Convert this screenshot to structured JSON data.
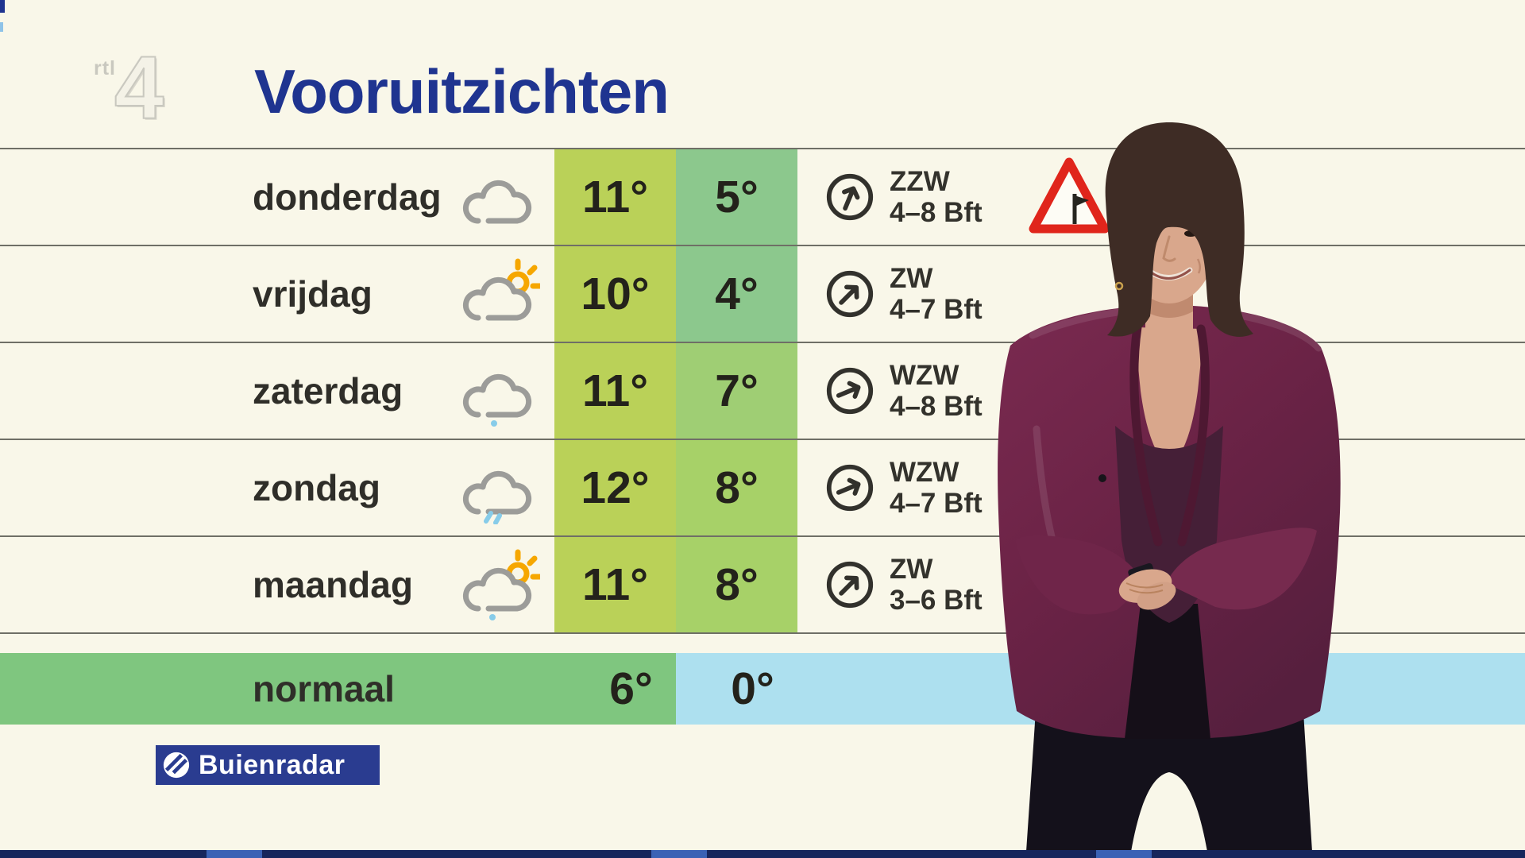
{
  "branding": {
    "channel_small": "rtl",
    "channel_number": "4",
    "title": "Vooruitzichten",
    "buienradar": "Buienradar"
  },
  "colors": {
    "background": "#F9F7E9",
    "title_blue": "#1F3490",
    "table_line": "#6F6F66",
    "max_column": "#BAD158",
    "min_cool": "#8CC88D",
    "min_mild": "#9FCE74",
    "min_warm": "#A7D168",
    "normal_green": "#7FC67F",
    "normal_blue": "#ADE0EF",
    "buienradar_navy": "#2A3C90",
    "warning_red": "#E0251B",
    "sun_orange": "#F6A700",
    "rain_blue": "#87CCE9",
    "cloud_gray": "#9C9C99"
  },
  "forecast": {
    "rows": [
      {
        "day": "donderdag",
        "icon": "cloud",
        "max": "11°",
        "min": "5°",
        "max_color": "#BAD158",
        "min_color": "#8CC88D",
        "wind_dir": "ZZW",
        "wind_force": "4–8 Bft",
        "wind_deg": 22.5,
        "warning": true,
        "warning_icon": "storm-warning-triangle"
      },
      {
        "day": "vrijdag",
        "icon": "cloud-sun",
        "max": "10°",
        "min": "4°",
        "max_color": "#BAD158",
        "min_color": "#8CC88D",
        "wind_dir": "ZW",
        "wind_force": "4–7 Bft",
        "wind_deg": 45,
        "warning": false
      },
      {
        "day": "zaterdag",
        "icon": "cloud-drizzle",
        "max": "11°",
        "min": "7°",
        "max_color": "#BAD158",
        "min_color": "#9FCE74",
        "wind_dir": "WZW",
        "wind_force": "4–8 Bft",
        "wind_deg": 67.5,
        "warning": false
      },
      {
        "day": "zondag",
        "icon": "cloud-rain",
        "max": "12°",
        "min": "8°",
        "max_color": "#BAD158",
        "min_color": "#A7D168",
        "wind_dir": "WZW",
        "wind_force": "4–7 Bft",
        "wind_deg": 67.5,
        "warning": false
      },
      {
        "day": "maandag",
        "icon": "cloud-sun-drizzle",
        "max": "11°",
        "min": "8°",
        "max_color": "#BAD158",
        "min_color": "#A7D168",
        "wind_dir": "ZW",
        "wind_force": "3–6 Bft",
        "wind_deg": 45,
        "warning": false
      }
    ],
    "normal": {
      "label": "normaal",
      "max": "6°",
      "min": "0°",
      "max_color": "#7FC67F",
      "min_color": "#ADE0EF"
    }
  },
  "chart_data": {
    "type": "table",
    "title": "Vooruitzichten",
    "columns": [
      "dag",
      "weerbeeld",
      "max_temp",
      "min_temp",
      "windrichting",
      "windkracht"
    ],
    "rows": [
      [
        "donderdag",
        "cloud",
        "11°",
        "5°",
        "ZZW",
        "4–8 Bft"
      ],
      [
        "vrijdag",
        "cloud-sun",
        "10°",
        "4°",
        "ZW",
        "4–7 Bft"
      ],
      [
        "zaterdag",
        "cloud-drizzle",
        "11°",
        "7°",
        "WZW",
        "4–8 Bft"
      ],
      [
        "zondag",
        "cloud-rain",
        "12°",
        "8°",
        "WZW",
        "4–7 Bft"
      ],
      [
        "maandag",
        "cloud-sun-drizzle",
        "11°",
        "8°",
        "ZW",
        "3–6 Bft"
      ],
      [
        "normaal",
        "",
        "6°",
        "0°",
        "",
        ""
      ]
    ]
  }
}
